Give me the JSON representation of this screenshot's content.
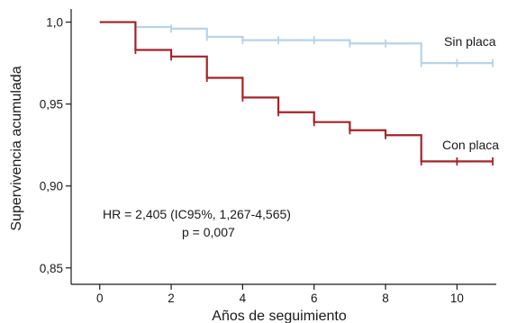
{
  "chart_data": {
    "type": "line",
    "step": true,
    "xlabel": "Años de seguimiento",
    "ylabel": "Supervivencia acumulada",
    "xlim": [
      -0.8,
      11.1
    ],
    "ylim": [
      0.84,
      1.008
    ],
    "x_ticks": [
      0,
      2,
      4,
      6,
      8,
      10
    ],
    "x_tick_labels": [
      "0",
      "2",
      "4",
      "6",
      "8",
      "10"
    ],
    "y_ticks": [
      0.85,
      0.9,
      0.95,
      1.0
    ],
    "y_tick_labels": [
      "0,85",
      "0,90",
      "0,95",
      "1,0"
    ],
    "grid": false,
    "legend": "none",
    "series": [
      {
        "name": "Sin placa",
        "color": "#b7d3e8",
        "x": [
          0,
          1,
          2,
          3,
          4,
          5,
          6,
          7,
          8,
          9,
          10,
          11
        ],
        "y": [
          1.0,
          0.997,
          0.996,
          0.991,
          0.989,
          0.989,
          0.989,
          0.987,
          0.987,
          0.975,
          0.975,
          0.975
        ],
        "censor_x": [
          1,
          2,
          3,
          4,
          5,
          6,
          7,
          8,
          9,
          10,
          11
        ]
      },
      {
        "name": "Con placa",
        "color": "#a3232a",
        "x": [
          0,
          1,
          2,
          3,
          4,
          5,
          6,
          7,
          8,
          9,
          10,
          11
        ],
        "y": [
          1.0,
          0.983,
          0.979,
          0.966,
          0.954,
          0.945,
          0.939,
          0.934,
          0.931,
          0.915,
          0.915,
          0.915
        ],
        "censor_x": [
          1,
          2,
          3,
          4,
          5,
          6,
          7,
          8,
          9,
          10,
          11
        ]
      }
    ],
    "annotations": {
      "hr": "HR = 2,405 (IC95%, 1,267-4,565)",
      "p": "p = 0,007"
    }
  }
}
